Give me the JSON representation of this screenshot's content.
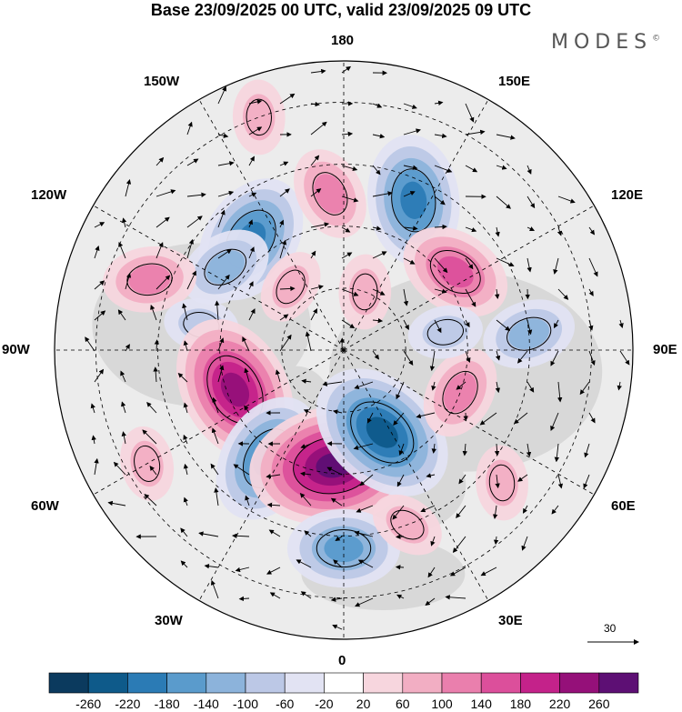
{
  "title": "Base 23/09/2025 00 UTC, valid 23/09/2025 09 UTC",
  "brand": "MODES",
  "brand_mark": "©",
  "longitude_labels": {
    "top": "180",
    "top_left": "150W",
    "top_right": "150E",
    "upper_left": "120W",
    "upper_right": "120E",
    "left": "90W",
    "right": "90E",
    "lower_left": "60W",
    "lower_right": "60E",
    "bottom_left": "30W",
    "bottom_right": "30E",
    "bottom": "0"
  },
  "vector_scale": {
    "label": "30"
  },
  "colorbar": {
    "labels": [
      "-260",
      "-220",
      "-180",
      "-140",
      "-100",
      "-60",
      "-20",
      "20",
      "60",
      "100",
      "140",
      "180",
      "220",
      "260"
    ],
    "colors": [
      "#0b3a5e",
      "#0e5a8a",
      "#2b7bb5",
      "#5a9bcc",
      "#8cb3db",
      "#bcc8e6",
      "#e2e3f3",
      "#ffffff",
      "#f7d6de",
      "#f2aec3",
      "#ea7fad",
      "#dc4f9b",
      "#c4228a",
      "#951079",
      "#5d0f74"
    ]
  },
  "anomalies": [
    {
      "lon": -140,
      "lat": 55,
      "value": -180
    },
    {
      "lon": -175,
      "lat": 52,
      "value": 120
    },
    {
      "lon": 155,
      "lat": 50,
      "value": -200
    },
    {
      "lon": 125,
      "lat": 57,
      "value": 160
    },
    {
      "lon": -125,
      "lat": 55,
      "value": -120
    },
    {
      "lon": -110,
      "lat": 40,
      "value": 100
    },
    {
      "lon": -100,
      "lat": 55,
      "value": -90
    },
    {
      "lon": -70,
      "lat": 62,
      "value": 240
    },
    {
      "lon": -35,
      "lat": 58,
      "value": -200
    },
    {
      "lon": -5,
      "lat": 62,
      "value": 260
    },
    {
      "lon": 25,
      "lat": 68,
      "value": -230
    },
    {
      "lon": 0,
      "lat": 42,
      "value": -170
    },
    {
      "lon": 70,
      "lat": 60,
      "value": 110
    },
    {
      "lon": 95,
      "lat": 45,
      "value": -130
    },
    {
      "lon": 50,
      "lat": 40,
      "value": 60
    },
    {
      "lon": 100,
      "lat": 65,
      "value": -90
    },
    {
      "lon": -160,
      "lat": 30,
      "value": 60
    },
    {
      "lon": -140,
      "lat": 70,
      "value": 60
    },
    {
      "lon": 160,
      "lat": 75,
      "value": 70
    },
    {
      "lon": -60,
      "lat": 35,
      "value": 60
    },
    {
      "lon": 20,
      "lat": 45,
      "value": 60
    }
  ]
}
